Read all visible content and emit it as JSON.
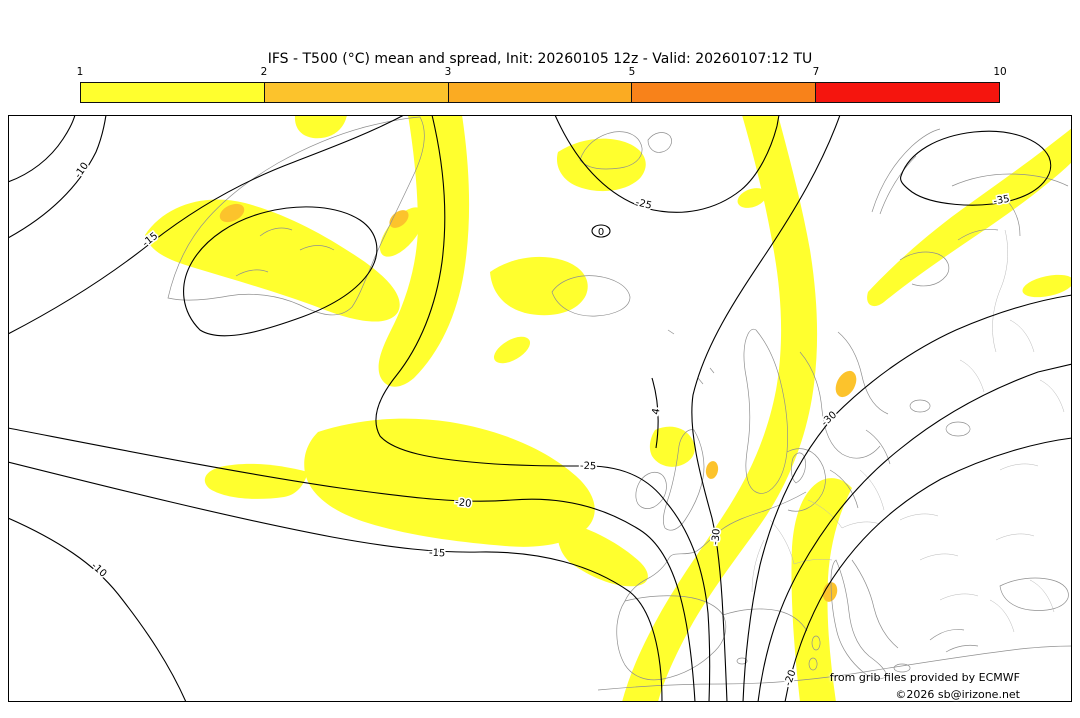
{
  "title": "IFS - T500 (°C) mean and spread, Init: 20260105 12z - Valid: 20260107:12 TU",
  "legend": {
    "tick_labels": [
      "1",
      "2",
      "3",
      "5",
      "7",
      "10"
    ],
    "segments": [
      {
        "from": "1",
        "to": "2",
        "color": "#ffff2e"
      },
      {
        "from": "2",
        "to": "3",
        "color": "#fcc32c"
      },
      {
        "from": "3",
        "to": "5",
        "color": "#fbab22"
      },
      {
        "from": "5",
        "to": "7",
        "color": "#f8821a"
      },
      {
        "from": "7",
        "to": "10",
        "color": "#f5150e"
      }
    ]
  },
  "map": {
    "contour_labels": [
      {
        "text": "-10",
        "value": -10
      },
      {
        "text": "-15",
        "value": -15
      },
      {
        "text": "-25",
        "value": -25
      },
      {
        "text": "0",
        "value": 0
      },
      {
        "text": "-35",
        "value": -35
      },
      {
        "text": "-25",
        "value": -25
      },
      {
        "text": "-20",
        "value": -20
      },
      {
        "text": "-15",
        "value": -15
      },
      {
        "text": "-10",
        "value": -10
      },
      {
        "text": "-30",
        "value": -30
      },
      {
        "text": "4",
        "value": 4
      },
      {
        "text": "-20",
        "value": -20
      },
      {
        "text": "-30",
        "value": -30
      }
    ]
  },
  "colors": {
    "spread_level1": "#ffff2e",
    "spread_level2": "#fcc32c",
    "contour": "#000000",
    "coastline": "#8f8f8f",
    "border_light": "#b8b8b8",
    "map_border": "#000000"
  },
  "footer": {
    "attribution": "from grib files provided by ECMWF",
    "copyright": "©2026 sb@irizone.net"
  },
  "chart_data": {
    "type": "contour-map",
    "title": "IFS - T500 (°C) mean and spread",
    "init": "20260105 12z",
    "valid": "20260107:12 TU",
    "spread_scale_levels": [
      1,
      2,
      3,
      5,
      7,
      10
    ],
    "spread_scale_colors": [
      "#ffff2e",
      "#fcc32c",
      "#fbab22",
      "#f8821a",
      "#f5150e"
    ],
    "mean_contour_values_c": [
      -35,
      -30,
      -25,
      -20,
      -15,
      -10,
      0,
      4
    ]
  }
}
